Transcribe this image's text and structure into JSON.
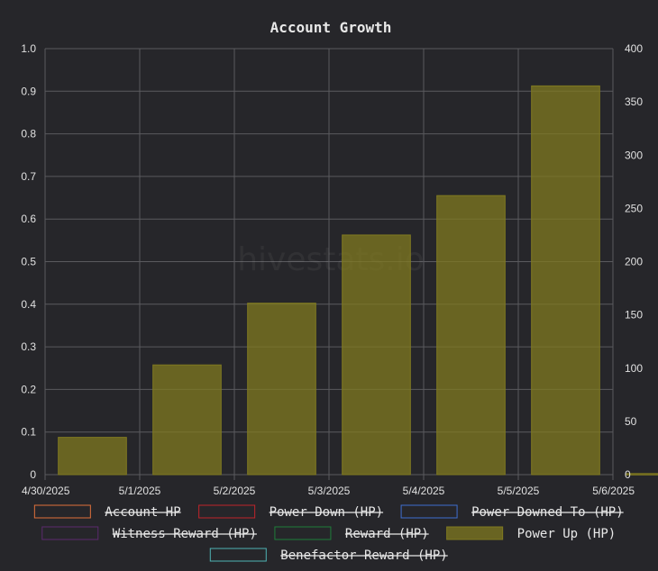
{
  "chart_data": {
    "type": "bar",
    "title": "Account Growth",
    "watermark": "hivestats.io",
    "x_ticks": [
      "4/30/2025",
      "5/1/2025",
      "5/2/2025",
      "5/3/2025",
      "5/4/2025",
      "5/5/2025",
      "5/6/2025"
    ],
    "y_left": {
      "ticks": [
        "0",
        "0.1",
        "0.2",
        "0.3",
        "0.4",
        "0.5",
        "0.6",
        "0.7",
        "0.8",
        "0.9",
        "1.0"
      ],
      "ylim": [
        0,
        1
      ]
    },
    "y_right": {
      "ticks": [
        "0",
        "50",
        "100",
        "150",
        "200",
        "250",
        "300",
        "350",
        "400"
      ],
      "ylim": [
        0,
        400
      ]
    },
    "grid": true,
    "legend_position": "bottom",
    "series": [
      {
        "name": "Account HP",
        "color": "#e0703a",
        "hidden": true,
        "values": []
      },
      {
        "name": "Power Down (HP)",
        "color": "#c0242b",
        "hidden": true,
        "values": []
      },
      {
        "name": "Power Downed To (HP)",
        "color": "#3f6fd0",
        "hidden": true,
        "values": []
      },
      {
        "name": "Witness Reward (HP)",
        "color": "#5c2a6e",
        "hidden": true,
        "values": []
      },
      {
        "name": "Reward (HP)",
        "color": "#1f7d3a",
        "hidden": true,
        "values": []
      },
      {
        "name": "Power Up (HP)",
        "color": "#807a20",
        "hidden": false,
        "axis": "right",
        "values": [
          {
            "x": "4/30/2025",
            "y": 35
          },
          {
            "x": "5/1/2025",
            "y": 103
          },
          {
            "x": "5/2/2025",
            "y": 161
          },
          {
            "x": "5/3/2025",
            "y": 225
          },
          {
            "x": "5/4/2025",
            "y": 262
          },
          {
            "x": "5/5/2025",
            "y": 365
          },
          {
            "x": "5/6/2025",
            "y": 1
          }
        ]
      },
      {
        "name": "Benefactor Reward (HP)",
        "color": "#4fb4b4",
        "hidden": true,
        "values": []
      }
    ]
  }
}
